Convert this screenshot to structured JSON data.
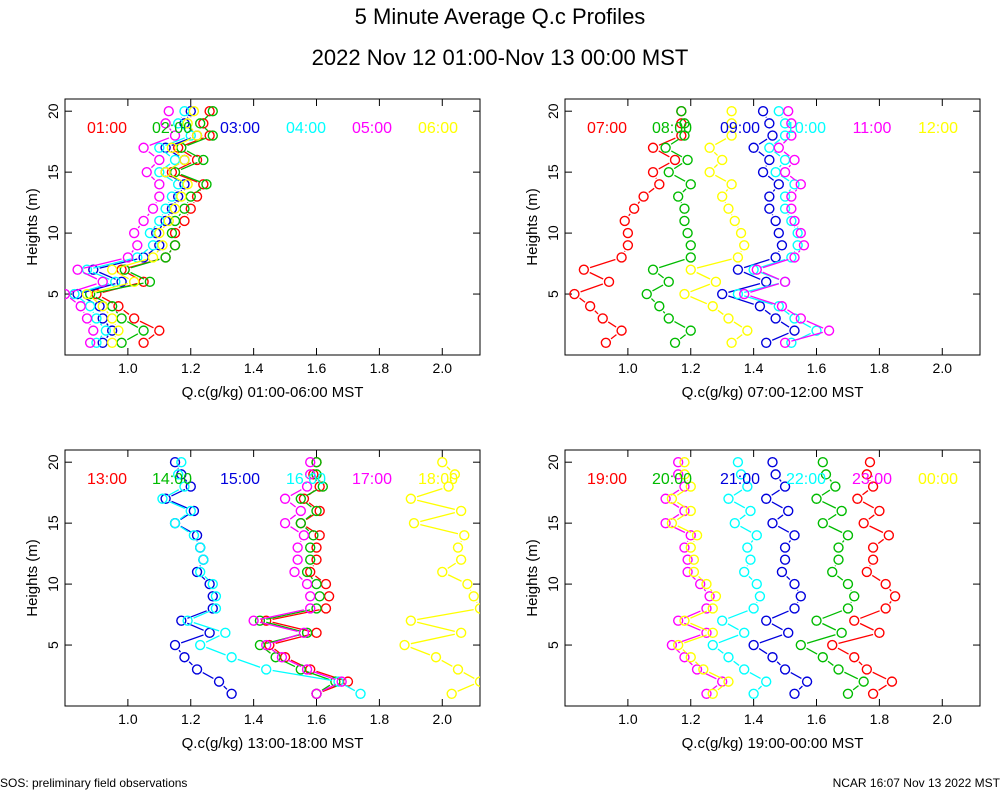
{
  "header": {
    "title": "5 Minute Average Q.c Profiles",
    "subtitle": "2022 Nov 12 01:00-Nov 13 00:00 MST"
  },
  "footer": {
    "left": "SOS: preliminary field observations",
    "right": "NCAR 16:07 Nov 13 2022 MST"
  },
  "colors": [
    "#ff0000",
    "#00bb00",
    "#0000dd",
    "#00ffff",
    "#ff00ff",
    "#ffff00"
  ],
  "chart_data": [
    {
      "type": "line",
      "xlabel": "Q.c(g/kg) 01:00-06:00 MST",
      "ylabel": "Heights (m)",
      "xlim": [
        0.8,
        2.12
      ],
      "ylim": [
        0,
        21
      ],
      "xticks": [
        "1.0",
        "1.2",
        "1.4",
        "1.6",
        "1.8",
        "2.0"
      ],
      "xtick_values": [
        1.0,
        1.2,
        1.4,
        1.6,
        1.8,
        2.0
      ],
      "yticks": [
        "5",
        "10",
        "15",
        "20"
      ],
      "ytick_values": [
        5,
        10,
        15,
        20
      ],
      "y": [
        1,
        2,
        3,
        4,
        5,
        6,
        7,
        8,
        9,
        10,
        11,
        12,
        13,
        14,
        15,
        16,
        17,
        18,
        19,
        20
      ],
      "series": [
        {
          "name": "01:00",
          "values": [
            1.05,
            1.1,
            1.02,
            0.97,
            0.9,
            1.05,
            0.98,
            1.12,
            1.15,
            1.15,
            1.18,
            1.2,
            1.22,
            1.24,
            1.14,
            1.22,
            1.16,
            1.26,
            1.24,
            1.26
          ]
        },
        {
          "name": "02:00",
          "values": [
            0.98,
            1.05,
            0.98,
            0.95,
            0.88,
            1.07,
            0.99,
            1.12,
            1.15,
            1.14,
            1.15,
            1.18,
            1.2,
            1.25,
            1.15,
            1.24,
            1.17,
            1.27,
            1.23,
            1.27
          ]
        },
        {
          "name": "03:00",
          "values": [
            0.92,
            0.95,
            0.92,
            0.91,
            0.84,
            0.98,
            0.89,
            1.05,
            1.1,
            1.09,
            1.12,
            1.14,
            1.16,
            1.18,
            1.12,
            1.18,
            1.12,
            1.22,
            1.18,
            1.2
          ]
        },
        {
          "name": "04:00",
          "values": [
            0.9,
            0.93,
            0.9,
            0.88,
            0.83,
            0.96,
            0.87,
            1.03,
            1.08,
            1.07,
            1.1,
            1.12,
            1.14,
            1.16,
            1.1,
            1.15,
            1.1,
            1.2,
            1.16,
            1.18
          ]
        },
        {
          "name": "05:00",
          "values": [
            0.88,
            0.89,
            0.87,
            0.85,
            0.8,
            0.92,
            0.84,
            1.0,
            1.03,
            1.02,
            1.05,
            1.08,
            1.1,
            1.1,
            1.06,
            1.1,
            1.05,
            1.15,
            1.12,
            1.13
          ]
        },
        {
          "name": "06:00",
          "values": [
            0.95,
            0.97,
            0.95,
            0.92,
            0.87,
            1.02,
            0.95,
            1.08,
            1.11,
            1.1,
            1.13,
            1.15,
            1.17,
            1.19,
            1.12,
            1.18,
            1.14,
            1.22,
            1.19,
            1.21
          ]
        }
      ]
    },
    {
      "type": "line",
      "xlabel": "Q.c(g/kg) 07:00-12:00 MST",
      "ylabel": "Heights (m)",
      "xlim": [
        0.8,
        2.12
      ],
      "ylim": [
        0,
        21
      ],
      "xticks": [
        "1.0",
        "1.2",
        "1.4",
        "1.6",
        "1.8",
        "2.0"
      ],
      "xtick_values": [
        1.0,
        1.2,
        1.4,
        1.6,
        1.8,
        2.0
      ],
      "yticks": [
        "5",
        "10",
        "15",
        "20"
      ],
      "ytick_values": [
        5,
        10,
        15,
        20
      ],
      "y": [
        1,
        2,
        3,
        4,
        5,
        6,
        7,
        8,
        9,
        10,
        11,
        12,
        13,
        14,
        15,
        16,
        17,
        18,
        19,
        20
      ],
      "series": [
        {
          "name": "07:00",
          "values": [
            0.93,
            0.98,
            0.92,
            0.88,
            0.83,
            0.94,
            0.86,
            0.98,
            1.0,
            1.0,
            0.99,
            1.02,
            1.05,
            1.1,
            1.08,
            1.15,
            1.08,
            1.17,
            1.17,
            1.17
          ]
        },
        {
          "name": "08:00",
          "values": [
            1.15,
            1.2,
            1.13,
            1.1,
            1.06,
            1.13,
            1.08,
            1.2,
            1.2,
            1.19,
            1.18,
            1.18,
            1.16,
            1.2,
            1.13,
            1.19,
            1.12,
            1.18,
            1.18,
            1.17
          ]
        },
        {
          "name": "09:00",
          "values": [
            1.44,
            1.53,
            1.47,
            1.42,
            1.3,
            1.44,
            1.35,
            1.47,
            1.49,
            1.48,
            1.47,
            1.45,
            1.45,
            1.48,
            1.43,
            1.45,
            1.4,
            1.46,
            1.45,
            1.43
          ]
        },
        {
          "name": "10:00",
          "values": [
            1.52,
            1.6,
            1.53,
            1.48,
            1.35,
            1.5,
            1.4,
            1.52,
            1.54,
            1.54,
            1.52,
            1.5,
            1.5,
            1.53,
            1.47,
            1.5,
            1.45,
            1.5,
            1.5,
            1.48
          ]
        },
        {
          "name": "11:00",
          "values": [
            1.5,
            1.64,
            1.55,
            1.49,
            1.37,
            1.5,
            1.41,
            1.53,
            1.56,
            1.55,
            1.53,
            1.52,
            1.52,
            1.55,
            1.5,
            1.53,
            1.48,
            1.52,
            1.52,
            1.51
          ]
        },
        {
          "name": "12:00",
          "values": [
            1.33,
            1.38,
            1.32,
            1.27,
            1.18,
            1.28,
            1.2,
            1.35,
            1.37,
            1.36,
            1.34,
            1.32,
            1.3,
            1.33,
            1.26,
            1.3,
            1.26,
            1.33,
            1.33,
            1.33
          ]
        }
      ]
    },
    {
      "type": "line",
      "xlabel": "Q.c(g/kg) 13:00-18:00 MST",
      "ylabel": "Heights (m)",
      "xlim": [
        0.8,
        2.12
      ],
      "ylim": [
        0,
        21
      ],
      "xticks": [
        "1.0",
        "1.2",
        "1.4",
        "1.6",
        "1.8",
        "2.0"
      ],
      "xtick_values": [
        1.0,
        1.2,
        1.4,
        1.6,
        1.8,
        2.0
      ],
      "yticks": [
        "5",
        "10",
        "15",
        "20"
      ],
      "ytick_values": [
        5,
        10,
        15,
        20
      ],
      "y": [
        1,
        2,
        3,
        4,
        5,
        6,
        7,
        8,
        9,
        10,
        11,
        12,
        13,
        14,
        15,
        16,
        17,
        18,
        19,
        20
      ],
      "series": [
        {
          "name": "13:00",
          "values": [
            1.6,
            1.7,
            1.58,
            1.5,
            1.45,
            1.6,
            1.44,
            1.63,
            1.64,
            1.63,
            1.58,
            1.6,
            1.6,
            1.61,
            1.55,
            1.61,
            1.56,
            1.61,
            1.59,
            1.6
          ]
        },
        {
          "name": "14:00",
          "values": [
            1.6,
            1.66,
            1.55,
            1.47,
            1.42,
            1.57,
            1.42,
            1.6,
            1.61,
            1.6,
            1.57,
            1.58,
            1.58,
            1.59,
            1.55,
            1.6,
            1.55,
            1.62,
            1.6,
            1.6
          ]
        },
        {
          "name": "15:00",
          "values": [
            1.33,
            1.29,
            1.22,
            1.18,
            1.15,
            1.26,
            1.17,
            1.27,
            1.27,
            1.26,
            1.22,
            1.24,
            1.23,
            1.22,
            1.15,
            1.21,
            1.12,
            1.2,
            1.17,
            1.15
          ]
        },
        {
          "name": "16:00",
          "values": [
            1.74,
            1.67,
            1.44,
            1.33,
            1.23,
            1.31,
            1.19,
            1.28,
            1.28,
            1.27,
            1.23,
            1.24,
            1.23,
            1.21,
            1.15,
            1.2,
            1.11,
            1.18,
            1.16,
            1.17
          ]
        },
        {
          "name": "17:00",
          "values": [
            1.6,
            1.68,
            1.57,
            1.49,
            1.44,
            1.56,
            1.4,
            1.58,
            1.58,
            1.57,
            1.53,
            1.54,
            1.54,
            1.56,
            1.5,
            1.55,
            1.5,
            1.57,
            1.58,
            1.58
          ]
        },
        {
          "name": "18:00",
          "values": [
            2.03,
            2.12,
            2.05,
            1.98,
            1.88,
            2.06,
            1.9,
            2.12,
            2.1,
            2.08,
            2.0,
            2.06,
            2.05,
            2.07,
            1.91,
            2.06,
            1.9,
            2.02,
            2.04,
            2.0
          ]
        }
      ]
    },
    {
      "type": "line",
      "xlabel": "Q.c(g/kg) 19:00-00:00 MST",
      "ylabel": "Heights (m)",
      "xlim": [
        0.8,
        2.12
      ],
      "ylim": [
        0,
        21
      ],
      "xticks": [
        "1.0",
        "1.2",
        "1.4",
        "1.6",
        "1.8",
        "2.0"
      ],
      "xtick_values": [
        1.0,
        1.2,
        1.4,
        1.6,
        1.8,
        2.0
      ],
      "yticks": [
        "5",
        "10",
        "15",
        "20"
      ],
      "ytick_values": [
        5,
        10,
        15,
        20
      ],
      "y": [
        1,
        2,
        3,
        4,
        5,
        6,
        7,
        8,
        9,
        10,
        11,
        12,
        13,
        14,
        15,
        16,
        17,
        18,
        19,
        20
      ],
      "series": [
        {
          "name": "19:00",
          "values": [
            1.78,
            1.84,
            1.76,
            1.72,
            1.65,
            1.8,
            1.72,
            1.82,
            1.85,
            1.82,
            1.76,
            1.78,
            1.78,
            1.83,
            1.75,
            1.8,
            1.73,
            1.78,
            1.76,
            1.77
          ]
        },
        {
          "name": "20:00",
          "values": [
            1.7,
            1.75,
            1.67,
            1.62,
            1.55,
            1.68,
            1.6,
            1.7,
            1.72,
            1.7,
            1.65,
            1.67,
            1.67,
            1.7,
            1.62,
            1.68,
            1.6,
            1.66,
            1.63,
            1.62
          ]
        },
        {
          "name": "21:00",
          "values": [
            1.53,
            1.57,
            1.5,
            1.46,
            1.4,
            1.51,
            1.44,
            1.53,
            1.55,
            1.53,
            1.49,
            1.5,
            1.5,
            1.53,
            1.46,
            1.51,
            1.44,
            1.5,
            1.47,
            1.46
          ]
        },
        {
          "name": "22:00",
          "values": [
            1.4,
            1.44,
            1.37,
            1.32,
            1.27,
            1.37,
            1.3,
            1.4,
            1.42,
            1.41,
            1.37,
            1.39,
            1.38,
            1.41,
            1.34,
            1.39,
            1.32,
            1.38,
            1.36,
            1.35
          ]
        },
        {
          "name": "23:00",
          "values": [
            1.25,
            1.3,
            1.22,
            1.18,
            1.14,
            1.25,
            1.16,
            1.25,
            1.26,
            1.23,
            1.19,
            1.19,
            1.18,
            1.2,
            1.12,
            1.18,
            1.12,
            1.18,
            1.16,
            1.16
          ]
        },
        {
          "name": "00:00",
          "values": [
            1.27,
            1.32,
            1.24,
            1.2,
            1.16,
            1.27,
            1.18,
            1.27,
            1.28,
            1.25,
            1.21,
            1.21,
            1.2,
            1.22,
            1.14,
            1.2,
            1.14,
            1.2,
            1.18,
            1.18
          ]
        }
      ]
    }
  ]
}
